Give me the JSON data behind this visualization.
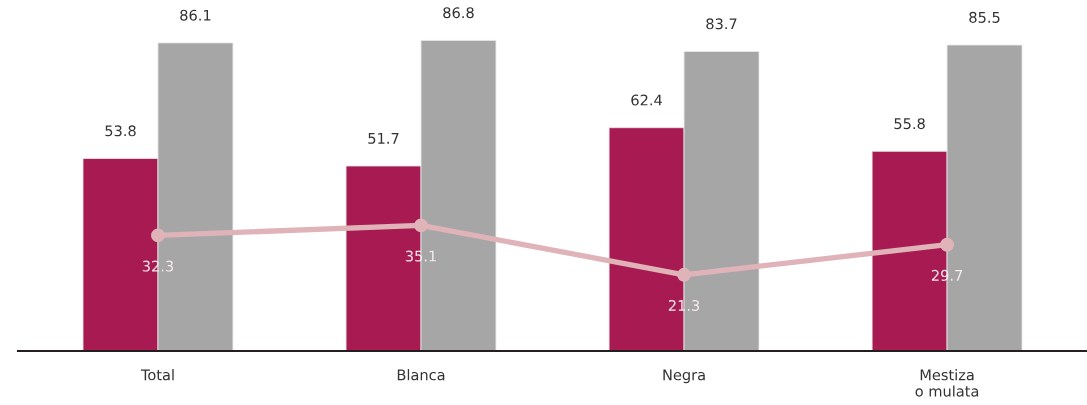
{
  "chart_data": {
    "type": "bar",
    "categories": [
      "Total",
      "Blanca",
      "Negra",
      "Mestiza\no mulata"
    ],
    "series": [
      {
        "color": "#a81a52",
        "values": [
          53.8,
          51.7,
          62.4,
          55.8
        ]
      },
      {
        "color": "#a6a6a6",
        "values": [
          86.1,
          86.8,
          83.7,
          85.5
        ]
      },
      {
        "type": "line",
        "color": "#e0b3b9",
        "values": [
          32.3,
          35.1,
          21.3,
          29.7
        ],
        "marker": "circle",
        "line_style": "solid"
      }
    ],
    "data_labels": true,
    "grid": false
  }
}
